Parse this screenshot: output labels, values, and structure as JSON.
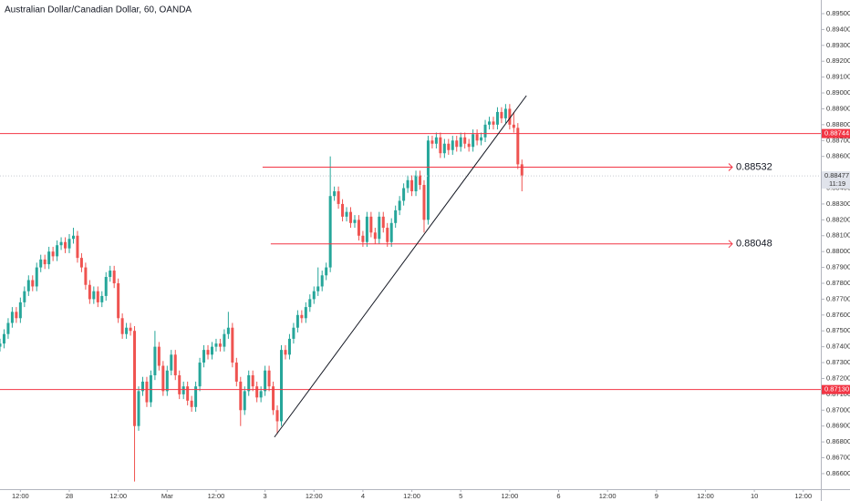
{
  "chart_data": {
    "type": "candlestick",
    "title": "Australian Dollar/Canadian Dollar, 60, OANDA",
    "up_color": "#26a69a",
    "down_color": "#ef5350",
    "ylim": [
      0.86502,
      0.89586
    ],
    "xlim": [
      0,
      201.3
    ],
    "grid": false,
    "open": [
      0.874,
      0.8742,
      0.8748,
      0.8755,
      0.8762,
      0.8758,
      0.8768,
      0.8775,
      0.8782,
      0.8778,
      0.879,
      0.8795,
      0.8792,
      0.88,
      0.8797,
      0.8804,
      0.8806,
      0.8802,
      0.8808,
      0.881,
      0.8796,
      0.879,
      0.8779,
      0.877,
      0.8775,
      0.8768,
      0.8772,
      0.8784,
      0.8788,
      0.878,
      0.8758,
      0.8748,
      0.8752,
      0.875,
      0.869,
      0.8712,
      0.8718,
      0.8705,
      0.8722,
      0.874,
      0.8728,
      0.8712,
      0.8725,
      0.8735,
      0.8722,
      0.871,
      0.8715,
      0.8706,
      0.8702,
      0.8715,
      0.873,
      0.8738,
      0.8735,
      0.874,
      0.8742,
      0.874,
      0.8748,
      0.8752,
      0.873,
      0.8718,
      0.87,
      0.8712,
      0.8722,
      0.8715,
      0.8708,
      0.8712,
      0.8725,
      0.8715,
      0.87,
      0.8693,
      0.8738,
      0.8735,
      0.8745,
      0.8752,
      0.876,
      0.8758,
      0.8765,
      0.877,
      0.8775,
      0.8778,
      0.8785,
      0.879,
      0.8835,
      0.8838,
      0.883,
      0.8822,
      0.8825,
      0.8818,
      0.882,
      0.881,
      0.8806,
      0.8822,
      0.8812,
      0.8808,
      0.8822,
      0.8815,
      0.8806,
      0.8818,
      0.8826,
      0.8832,
      0.884,
      0.8845,
      0.8838,
      0.8848,
      0.8842,
      0.882,
      0.887,
      0.8868,
      0.8872,
      0.8862,
      0.8868,
      0.8864,
      0.887,
      0.8866,
      0.8872,
      0.8868,
      0.8866,
      0.8874,
      0.887,
      0.8872,
      0.888,
      0.8882,
      0.888,
      0.8888,
      0.8884,
      0.889,
      0.888,
      0.8878,
      0.8855
    ],
    "high": [
      0.8745,
      0.8751,
      0.8758,
      0.8765,
      0.8765,
      0.8771,
      0.8778,
      0.8785,
      0.8785,
      0.8793,
      0.8798,
      0.8798,
      0.8803,
      0.8803,
      0.8807,
      0.8809,
      0.8809,
      0.8811,
      0.8815,
      0.8813,
      0.8799,
      0.8793,
      0.8782,
      0.8778,
      0.8778,
      0.8775,
      0.8787,
      0.8791,
      0.8791,
      0.8783,
      0.8761,
      0.8755,
      0.8755,
      0.8753,
      0.8715,
      0.8721,
      0.8721,
      0.8725,
      0.875,
      0.8743,
      0.8731,
      0.8728,
      0.8738,
      0.8738,
      0.8725,
      0.8718,
      0.8718,
      0.8709,
      0.8718,
      0.8733,
      0.8741,
      0.8741,
      0.8743,
      0.8745,
      0.8745,
      0.8751,
      0.8762,
      0.8755,
      0.8733,
      0.8721,
      0.8715,
      0.8725,
      0.8725,
      0.8718,
      0.8715,
      0.8728,
      0.8728,
      0.8718,
      0.8703,
      0.8741,
      0.8741,
      0.8748,
      0.8755,
      0.8763,
      0.8763,
      0.8768,
      0.8773,
      0.8778,
      0.879,
      0.8788,
      0.8793,
      0.886,
      0.8841,
      0.8841,
      0.8833,
      0.8828,
      0.8828,
      0.8823,
      0.8823,
      0.8813,
      0.8825,
      0.8825,
      0.8815,
      0.8825,
      0.8825,
      0.8818,
      0.8821,
      0.8829,
      0.8835,
      0.8843,
      0.8848,
      0.8848,
      0.8851,
      0.8851,
      0.8845,
      0.8873,
      0.8873,
      0.8875,
      0.8875,
      0.8871,
      0.8871,
      0.8873,
      0.8873,
      0.8875,
      0.8875,
      0.8871,
      0.8877,
      0.8877,
      0.8875,
      0.8883,
      0.8885,
      0.8885,
      0.8891,
      0.8891,
      0.8893,
      0.8893,
      0.8888,
      0.8881,
      0.8858
    ],
    "low": [
      0.8737,
      0.8739,
      0.8745,
      0.8752,
      0.8755,
      0.8755,
      0.8765,
      0.8772,
      0.8775,
      0.8775,
      0.8787,
      0.8789,
      0.8789,
      0.8794,
      0.8794,
      0.8801,
      0.8799,
      0.8799,
      0.8805,
      0.8793,
      0.8787,
      0.8776,
      0.8767,
      0.8767,
      0.8765,
      0.8765,
      0.8769,
      0.8781,
      0.8777,
      0.8755,
      0.8745,
      0.8745,
      0.8747,
      0.8655,
      0.8687,
      0.8709,
      0.8702,
      0.8702,
      0.8719,
      0.8725,
      0.8709,
      0.8709,
      0.8722,
      0.8719,
      0.8707,
      0.8707,
      0.8703,
      0.8699,
      0.8699,
      0.8712,
      0.8727,
      0.8732,
      0.8732,
      0.8737,
      0.8737,
      0.8737,
      0.8745,
      0.8727,
      0.8715,
      0.869,
      0.8697,
      0.8709,
      0.8712,
      0.8705,
      0.8705,
      0.8709,
      0.8712,
      0.8697,
      0.8685,
      0.869,
      0.8732,
      0.8732,
      0.8742,
      0.8749,
      0.8755,
      0.8755,
      0.8762,
      0.8767,
      0.8772,
      0.8775,
      0.8782,
      0.8787,
      0.8832,
      0.8827,
      0.8819,
      0.8819,
      0.8815,
      0.8815,
      0.8807,
      0.8803,
      0.8803,
      0.8809,
      0.8805,
      0.8805,
      0.8812,
      0.8803,
      0.8803,
      0.8815,
      0.8823,
      0.8829,
      0.8837,
      0.8835,
      0.8835,
      0.8839,
      0.8812,
      0.8817,
      0.8865,
      0.8865,
      0.8859,
      0.8859,
      0.8861,
      0.8861,
      0.8863,
      0.8863,
      0.8865,
      0.8863,
      0.8863,
      0.8867,
      0.8867,
      0.8869,
      0.8877,
      0.8877,
      0.8877,
      0.8881,
      0.8881,
      0.8877,
      0.8875,
      0.8852,
      0.8838
    ],
    "close": [
      0.8742,
      0.8748,
      0.8755,
      0.8762,
      0.8758,
      0.8768,
      0.8775,
      0.8782,
      0.8778,
      0.879,
      0.8795,
      0.8792,
      0.88,
      0.8797,
      0.8804,
      0.8806,
      0.8802,
      0.8808,
      0.881,
      0.8796,
      0.879,
      0.8779,
      0.877,
      0.8775,
      0.8768,
      0.8772,
      0.8784,
      0.8788,
      0.878,
      0.8758,
      0.8748,
      0.8752,
      0.875,
      0.869,
      0.8712,
      0.8718,
      0.8705,
      0.8722,
      0.874,
      0.8728,
      0.8712,
      0.8725,
      0.8735,
      0.8722,
      0.871,
      0.8715,
      0.8706,
      0.8702,
      0.8715,
      0.873,
      0.8738,
      0.8735,
      0.874,
      0.8742,
      0.874,
      0.8748,
      0.8752,
      0.873,
      0.8718,
      0.87,
      0.8712,
      0.8722,
      0.8715,
      0.8708,
      0.8712,
      0.8725,
      0.8715,
      0.87,
      0.8693,
      0.8738,
      0.8735,
      0.8745,
      0.8752,
      0.876,
      0.8758,
      0.8765,
      0.877,
      0.8775,
      0.8778,
      0.8785,
      0.879,
      0.8835,
      0.8838,
      0.883,
      0.8822,
      0.8825,
      0.8818,
      0.882,
      0.881,
      0.8806,
      0.8822,
      0.8812,
      0.8808,
      0.8822,
      0.8815,
      0.8806,
      0.8818,
      0.8826,
      0.8832,
      0.884,
      0.8845,
      0.8838,
      0.8848,
      0.8842,
      0.882,
      0.887,
      0.8868,
      0.8872,
      0.8862,
      0.8868,
      0.8864,
      0.887,
      0.8866,
      0.8872,
      0.8868,
      0.8866,
      0.8874,
      0.887,
      0.8872,
      0.888,
      0.8882,
      0.888,
      0.8888,
      0.8884,
      0.889,
      0.888,
      0.8878,
      0.8855,
      0.8848
    ],
    "yticks": [
      {
        "value": 0.866,
        "label": "0.86600"
      },
      {
        "value": 0.867,
        "label": "0.86700"
      },
      {
        "value": 0.868,
        "label": "0.86800"
      },
      {
        "value": 0.869,
        "label": "0.86900"
      },
      {
        "value": 0.87,
        "label": "0.87000"
      },
      {
        "value": 0.871,
        "label": "0.87100"
      },
      {
        "value": 0.872,
        "label": "0.87200"
      },
      {
        "value": 0.873,
        "label": "0.87300"
      },
      {
        "value": 0.874,
        "label": "0.87400"
      },
      {
        "value": 0.875,
        "label": "0.87500"
      },
      {
        "value": 0.876,
        "label": "0.87600"
      },
      {
        "value": 0.877,
        "label": "0.87700"
      },
      {
        "value": 0.878,
        "label": "0.87800"
      },
      {
        "value": 0.879,
        "label": "0.87900"
      },
      {
        "value": 0.88,
        "label": "0.88000"
      },
      {
        "value": 0.881,
        "label": "0.88100"
      },
      {
        "value": 0.882,
        "label": "0.88200"
      },
      {
        "value": 0.883,
        "label": "0.88300"
      },
      {
        "value": 0.884,
        "label": "0.88400"
      },
      {
        "value": 0.886,
        "label": "0.88600"
      },
      {
        "value": 0.887,
        "label": "0.88700"
      },
      {
        "value": 0.888,
        "label": "0.88800"
      },
      {
        "value": 0.889,
        "label": "0.88900"
      },
      {
        "value": 0.89,
        "label": "0.89000"
      },
      {
        "value": 0.891,
        "label": "0.89100"
      },
      {
        "value": 0.892,
        "label": "0.89200"
      },
      {
        "value": 0.893,
        "label": "0.89300"
      },
      {
        "value": 0.894,
        "label": "0.89400"
      },
      {
        "value": 0.895,
        "label": "0.89500"
      }
    ],
    "xticks": [
      {
        "value": 5,
        "label": "12:00"
      },
      {
        "value": 17,
        "label": "28"
      },
      {
        "value": 29,
        "label": "12:00"
      },
      {
        "value": 41,
        "label": "Mar"
      },
      {
        "value": 53,
        "label": "12:00"
      },
      {
        "value": 65,
        "label": "3"
      },
      {
        "value": 77,
        "label": "12:00"
      },
      {
        "value": 89,
        "label": "4"
      },
      {
        "value": 101,
        "label": "12:00"
      },
      {
        "value": 113,
        "label": "5"
      },
      {
        "value": 125,
        "label": "12:00"
      },
      {
        "value": 137,
        "label": "6"
      },
      {
        "value": 149,
        "label": "12:00"
      },
      {
        "value": 161,
        "label": "9"
      },
      {
        "value": 173,
        "label": "12:00"
      },
      {
        "value": 185,
        "label": "10"
      },
      {
        "value": 197,
        "label": "12:00"
      }
    ],
    "horizontal_lines": [
      {
        "value": 0.88744,
        "label": "0.88744",
        "color": "#f23645"
      },
      {
        "value": 0.8713,
        "label": "0.87130",
        "color": "#f23645"
      }
    ],
    "rays": [
      {
        "value": 0.88532,
        "label": "0.88532",
        "x": [
          64.4,
          179.6
        ],
        "color": "#f23645"
      },
      {
        "value": 0.88048,
        "label": "0.88048",
        "x": [
          66.4,
          179.6
        ],
        "color": "#f23645"
      }
    ],
    "trend_line": {
      "x": [
        67.3,
        129.1
      ],
      "y": [
        0.8683,
        0.88983
      ],
      "color": "#131722"
    },
    "last_price": {
      "value": 0.88477,
      "label": "0.88477",
      "countdown": "11:19"
    }
  }
}
